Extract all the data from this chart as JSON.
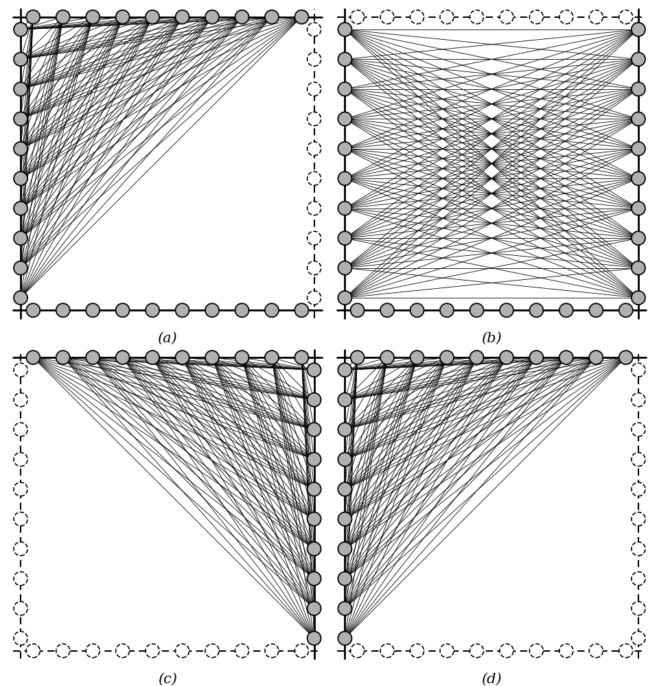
{
  "n": 10,
  "node_r": 0.022,
  "solid_fc": "#b0b0b0",
  "solid_ec": "#000000",
  "dashed_fc": "#ffffff",
  "dashed_ec": "#000000",
  "line_color": "#000000",
  "line_lw": 0.6,
  "border_lw": 2.0,
  "label_fs": 15,
  "panels": [
    {
      "label": "(a)",
      "solid_sides": [
        "top",
        "left",
        "bottom"
      ],
      "dashed_sides": [
        "right"
      ],
      "connections": [
        [
          "top",
          "left"
        ]
      ]
    },
    {
      "label": "(b)",
      "solid_sides": [
        "left",
        "right",
        "bottom"
      ],
      "dashed_sides": [
        "top"
      ],
      "connections": [
        [
          "left",
          "right"
        ]
      ]
    },
    {
      "label": "(c)",
      "solid_sides": [
        "top",
        "right"
      ],
      "dashed_sides": [
        "left",
        "bottom"
      ],
      "connections": [
        [
          "top",
          "right"
        ]
      ]
    },
    {
      "label": "(d)",
      "solid_sides": [
        "top",
        "left"
      ],
      "dashed_sides": [
        "right",
        "bottom"
      ],
      "connections": [
        [
          "top",
          "left"
        ]
      ]
    }
  ]
}
